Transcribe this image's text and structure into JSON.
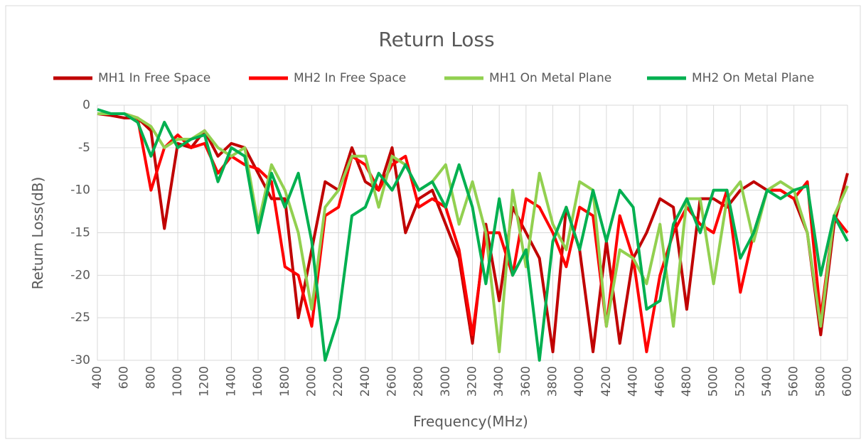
{
  "chart_data": {
    "type": "line",
    "title": "Return Loss",
    "xlabel": "Frequency(MHz)",
    "ylabel": "Return Loss(dB)",
    "x": [
      400,
      500,
      600,
      700,
      800,
      900,
      1000,
      1100,
      1200,
      1300,
      1400,
      1500,
      1600,
      1700,
      1800,
      1900,
      2000,
      2100,
      2200,
      2300,
      2400,
      2500,
      2600,
      2700,
      2800,
      2900,
      3000,
      3100,
      3200,
      3300,
      3400,
      3500,
      3600,
      3700,
      3800,
      3900,
      4000,
      4100,
      4200,
      4300,
      4400,
      4500,
      4600,
      4700,
      4800,
      4900,
      5000,
      5100,
      5200,
      5300,
      5400,
      5500,
      5600,
      5700,
      5800,
      5900,
      6000
    ],
    "series": [
      {
        "name": "MH1 In Free Space",
        "color": "#c00000",
        "values": [
          -1,
          -1.2,
          -1.5,
          -1.5,
          -3,
          -14.5,
          -4.5,
          -5,
          -3,
          -6,
          -4.5,
          -5,
          -8,
          -11,
          -11,
          -25,
          -17,
          -9,
          -10,
          -5,
          -9,
          -10,
          -5,
          -15,
          -11,
          -10,
          -14,
          -18,
          -28,
          -14,
          -23,
          -12,
          -15,
          -18,
          -29,
          -12,
          -17,
          -29,
          -16,
          -28,
          -18,
          -15,
          -11,
          -12,
          -24,
          -11,
          -11,
          -12,
          -10,
          -9,
          -10,
          -10,
          -11,
          -15,
          -27,
          -14,
          -8
        ]
      },
      {
        "name": "MH2 In Free Space",
        "color": "#ff0000",
        "values": [
          -1,
          -1,
          -1,
          -1.5,
          -10,
          -5,
          -3.5,
          -5,
          -4.5,
          -8,
          -6,
          -7,
          -7.5,
          -9,
          -19,
          -20,
          -26,
          -13,
          -12,
          -6,
          -7,
          -10,
          -7,
          -6,
          -12,
          -11,
          -12,
          -17,
          -27,
          -15,
          -15,
          -20,
          -11,
          -12,
          -15,
          -19,
          -12,
          -13,
          -26,
          -13,
          -18,
          -29,
          -20,
          -15,
          -12,
          -14,
          -15,
          -10,
          -22,
          -15,
          -10,
          -10,
          -11,
          -9,
          -25,
          -13,
          -15
        ]
      },
      {
        "name": "MH1 On Metal Plane",
        "color": "#92d050",
        "values": [
          -1,
          -1,
          -1,
          -1.5,
          -2.5,
          -5,
          -4,
          -4,
          -3,
          -5,
          -6,
          -5,
          -14,
          -7,
          -10,
          -15,
          -24,
          -12,
          -10,
          -6,
          -6,
          -12,
          -6,
          -7,
          -10,
          -9,
          -7,
          -14,
          -9,
          -15,
          -29,
          -10,
          -19,
          -8,
          -14,
          -17,
          -9,
          -10,
          -26,
          -17,
          -18,
          -21,
          -14,
          -26,
          -11,
          -11,
          -21,
          -11,
          -9,
          -16,
          -10,
          -9,
          -10,
          -15,
          -26,
          -13,
          -9.5
        ]
      },
      {
        "name": "MH2 On Metal Plane",
        "color": "#00b050",
        "values": [
          -0.5,
          -1,
          -1,
          -2,
          -6,
          -2,
          -5,
          -4,
          -3.5,
          -9,
          -5,
          -6,
          -15,
          -8,
          -12,
          -8,
          -16,
          -30,
          -25,
          -13,
          -12,
          -8,
          -10,
          -7,
          -10,
          -9,
          -12,
          -7,
          -12,
          -21,
          -11,
          -20,
          -17,
          -30,
          -16,
          -12,
          -17,
          -10,
          -16,
          -10,
          -12,
          -24,
          -23,
          -14,
          -11,
          -15,
          -10,
          -10,
          -18,
          -15,
          -10,
          -11,
          -10,
          -9.5,
          -20,
          -13,
          -16
        ]
      }
    ],
    "xlim": [
      400,
      6000
    ],
    "xticks": [
      400,
      600,
      800,
      1000,
      1200,
      1400,
      1600,
      1800,
      2000,
      2200,
      2400,
      2600,
      2800,
      3000,
      3200,
      3400,
      3600,
      3800,
      4000,
      4200,
      4400,
      4600,
      4800,
      5000,
      5200,
      5400,
      5600,
      5800,
      6000
    ],
    "ylim": [
      -30,
      0
    ],
    "yticks": [
      0,
      -5,
      -10,
      -15,
      -20,
      -25,
      -30
    ],
    "grid": true,
    "legend": "top"
  }
}
